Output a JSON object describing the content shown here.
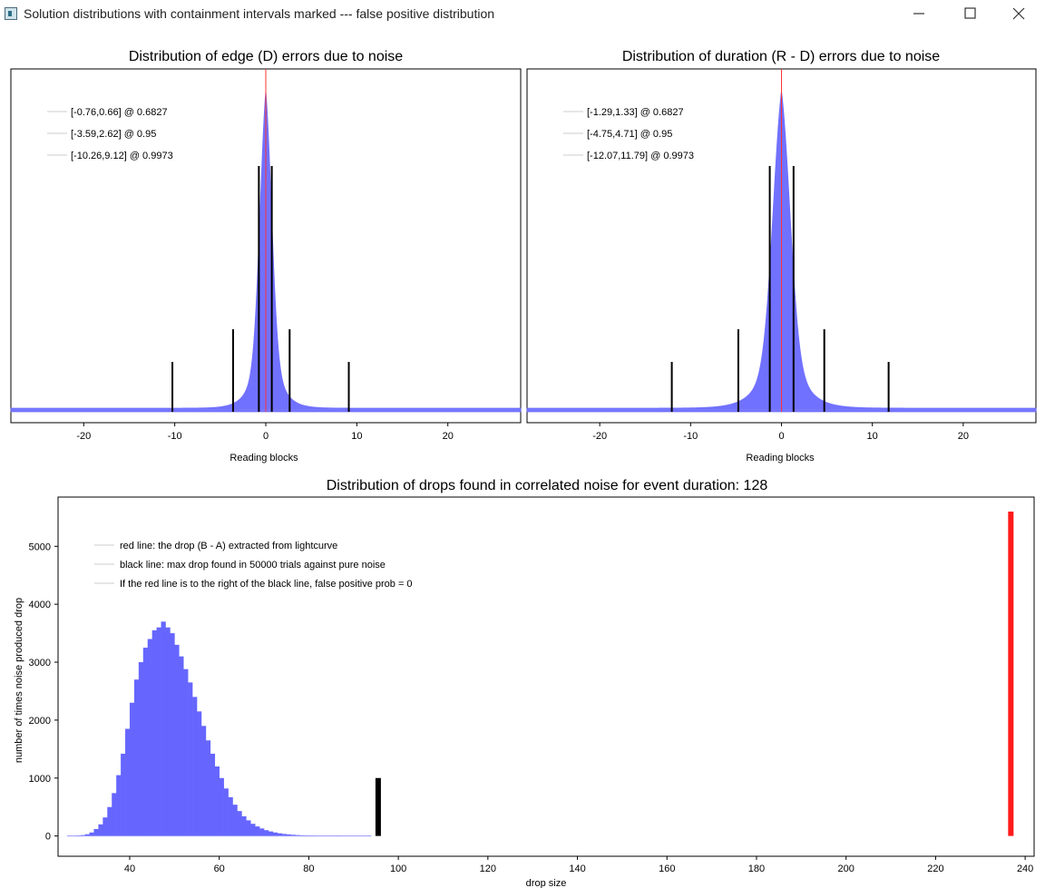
{
  "window": {
    "title": "Solution distributions with containment intervals marked --- false positive distribution",
    "minimize_icon": "minimize-icon",
    "maximize_icon": "maximize-icon",
    "close_icon": "close-icon"
  },
  "chart_data": [
    {
      "type": "histogram",
      "title": "Distribution of edge (D) errors due to noise",
      "xlabel": "Reading blocks",
      "ylabel": "",
      "xlim": [
        -28,
        28
      ],
      "xticks": [
        "-20",
        "-10",
        "0",
        "10",
        "20"
      ],
      "xtick_values": [
        -20,
        -10,
        0,
        10,
        20
      ],
      "distribution": {
        "center": 0,
        "scale": 1.05,
        "shape": "sharp-peaked, heavy-tailed",
        "color": "#6666ff"
      },
      "center_line": {
        "x": 0,
        "color": "#ff3333"
      },
      "intervals": [
        {
          "label": "[-0.76,0.66] @ 0.6827",
          "low": -0.76,
          "high": 0.66,
          "level": 0.6827
        },
        {
          "label": "[-3.59,2.62] @ 0.95",
          "low": -3.59,
          "high": 2.62,
          "level": 0.95
        },
        {
          "label": "[-10.26,9.12] @ 0.9973",
          "low": -10.26,
          "high": 9.12,
          "level": 0.9973
        }
      ]
    },
    {
      "type": "histogram",
      "title": "Distribution of duration (R - D) errors due to noise",
      "xlabel": "Reading blocks",
      "ylabel": "",
      "xlim": [
        -28,
        28
      ],
      "xticks": [
        "-20",
        "-10",
        "0",
        "10",
        "20"
      ],
      "xtick_values": [
        -20,
        -10,
        0,
        10,
        20
      ],
      "distribution": {
        "center": 0,
        "scale": 1.55,
        "shape": "sharp-peaked, heavy-tailed",
        "color": "#6666ff"
      },
      "center_line": {
        "x": 0,
        "color": "#ff3333"
      },
      "intervals": [
        {
          "label": "[-1.29,1.33] @ 0.6827",
          "low": -1.29,
          "high": 1.33,
          "level": 0.6827
        },
        {
          "label": "[-4.75,4.71] @ 0.95",
          "low": -4.75,
          "high": 4.71,
          "level": 0.95
        },
        {
          "label": "[-12.07,11.79] @ 0.9973",
          "low": -12.07,
          "high": 11.79,
          "level": 0.9973
        }
      ]
    },
    {
      "type": "bar",
      "title": "Distribution of drops found in correlated noise for event duration: 128",
      "xlabel": "drop size",
      "ylabel": "number of times noise produced drop",
      "xlim": [
        24,
        242
      ],
      "ylim": [
        -350,
        5850
      ],
      "xticks": [
        "40",
        "60",
        "80",
        "100",
        "120",
        "140",
        "160",
        "180",
        "200",
        "220",
        "240"
      ],
      "xtick_values": [
        40,
        60,
        80,
        100,
        120,
        140,
        160,
        180,
        200,
        220,
        240
      ],
      "yticks": [
        "0",
        "1000",
        "2000",
        "3000",
        "4000",
        "5000"
      ],
      "ytick_values": [
        0,
        1000,
        2000,
        3000,
        4000,
        5000
      ],
      "bin_width": 1,
      "bins": [
        {
          "x": 28,
          "y": 10
        },
        {
          "x": 29,
          "y": 15
        },
        {
          "x": 30,
          "y": 30
        },
        {
          "x": 31,
          "y": 60
        },
        {
          "x": 32,
          "y": 120
        },
        {
          "x": 33,
          "y": 200
        },
        {
          "x": 34,
          "y": 320
        },
        {
          "x": 35,
          "y": 500
        },
        {
          "x": 36,
          "y": 740
        },
        {
          "x": 37,
          "y": 1050
        },
        {
          "x": 38,
          "y": 1420
        },
        {
          "x": 39,
          "y": 1850
        },
        {
          "x": 40,
          "y": 2300
        },
        {
          "x": 41,
          "y": 2700
        },
        {
          "x": 42,
          "y": 3000
        },
        {
          "x": 43,
          "y": 3250
        },
        {
          "x": 44,
          "y": 3400
        },
        {
          "x": 45,
          "y": 3550
        },
        {
          "x": 46,
          "y": 3600
        },
        {
          "x": 47,
          "y": 3700
        },
        {
          "x": 48,
          "y": 3600
        },
        {
          "x": 49,
          "y": 3500
        },
        {
          "x": 50,
          "y": 3300
        },
        {
          "x": 51,
          "y": 3100
        },
        {
          "x": 52,
          "y": 2880
        },
        {
          "x": 53,
          "y": 2650
        },
        {
          "x": 54,
          "y": 2400
        },
        {
          "x": 55,
          "y": 2150
        },
        {
          "x": 56,
          "y": 1900
        },
        {
          "x": 57,
          "y": 1650
        },
        {
          "x": 58,
          "y": 1420
        },
        {
          "x": 59,
          "y": 1200
        },
        {
          "x": 60,
          "y": 1000
        },
        {
          "x": 61,
          "y": 820
        },
        {
          "x": 62,
          "y": 670
        },
        {
          "x": 63,
          "y": 540
        },
        {
          "x": 64,
          "y": 430
        },
        {
          "x": 65,
          "y": 340
        },
        {
          "x": 66,
          "y": 270
        },
        {
          "x": 67,
          "y": 210
        },
        {
          "x": 68,
          "y": 165
        },
        {
          "x": 69,
          "y": 130
        },
        {
          "x": 70,
          "y": 100
        },
        {
          "x": 71,
          "y": 78
        },
        {
          "x": 72,
          "y": 60
        },
        {
          "x": 73,
          "y": 46
        },
        {
          "x": 74,
          "y": 35
        },
        {
          "x": 75,
          "y": 27
        },
        {
          "x": 76,
          "y": 21
        },
        {
          "x": 77,
          "y": 16
        },
        {
          "x": 78,
          "y": 12
        },
        {
          "x": 79,
          "y": 9
        },
        {
          "x": 80,
          "y": 7
        },
        {
          "x": 81,
          "y": 5
        },
        {
          "x": 82,
          "y": 4
        },
        {
          "x": 83,
          "y": 3
        },
        {
          "x": 84,
          "y": 2
        },
        {
          "x": 85,
          "y": 2
        },
        {
          "x": 86,
          "y": 1
        }
      ],
      "bar_color": "#6666ff",
      "black_line": {
        "x": 95.5,
        "height": 1000,
        "color": "#000000"
      },
      "red_line": {
        "x": 236.8,
        "height": 5600,
        "color": "#ff1a1a"
      },
      "legend": [
        "red line: the drop (B - A) extracted from lightcurve",
        "black line: max drop found in 50000 trials against pure noise",
        "If the red line is to the right of the black line, false positive prob = 0"
      ]
    }
  ]
}
